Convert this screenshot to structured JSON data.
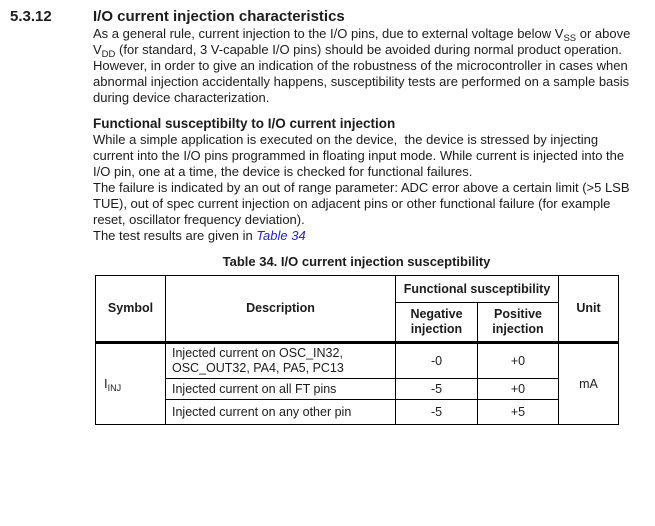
{
  "section": {
    "number": "5.3.12",
    "title": "I/O current injection characteristics"
  },
  "paragraph1": {
    "t1": "As a general rule, current injection to the I/O pins, due to external voltage below V",
    "sub1": "SS",
    "t2": " or above V",
    "sub2": "DD",
    "t3": " (for standard, 3 V-capable I/O pins) should be avoided during normal product operation. However, in order to give an indication of the robustness of the microcontroller in cases when abnormal injection accidentally happens, susceptibility tests are performed on a sample basis during device characterization."
  },
  "subsection_title": "Functional susceptibilty to I/O current injection",
  "paragraph2": "While a simple application is executed on the device,  the device is stressed by injecting current into the I/O pins programmed in floating input mode. While current is injected into the I/O pin, one at a time, the device is checked for functional failures.",
  "paragraph3": "The failure is indicated by an out of range parameter: ADC error above a certain limit (>5 LSB TUE), out of spec current injection on adjacent pins or other functional failure (for example reset, oscillator frequency deviation).",
  "paragraph4": {
    "text": "The test results are given in ",
    "link_label": "Table 34"
  },
  "table": {
    "caption": "Table 34. I/O current injection susceptibility",
    "headers": {
      "symbol": "Symbol",
      "description": "Description",
      "group": "Functional susceptibility",
      "negative": "Negative injection",
      "positive": "Positive injection",
      "unit": "Unit"
    },
    "symbol": {
      "base": "I",
      "sub": "INJ"
    },
    "unit_value": "mA",
    "rows": [
      {
        "description": "Injected current on OSC_IN32, OSC_OUT32, PA4, PA5, PC13",
        "negative": "-0",
        "positive": "+0"
      },
      {
        "description": "Injected current on all FT pins",
        "negative": "-5",
        "positive": "+0"
      },
      {
        "description": "Injected current on any other pin",
        "negative": "-5",
        "positive": "+5"
      }
    ]
  },
  "colors": {
    "link": "#2222cc",
    "text": "#1c1c1c"
  }
}
